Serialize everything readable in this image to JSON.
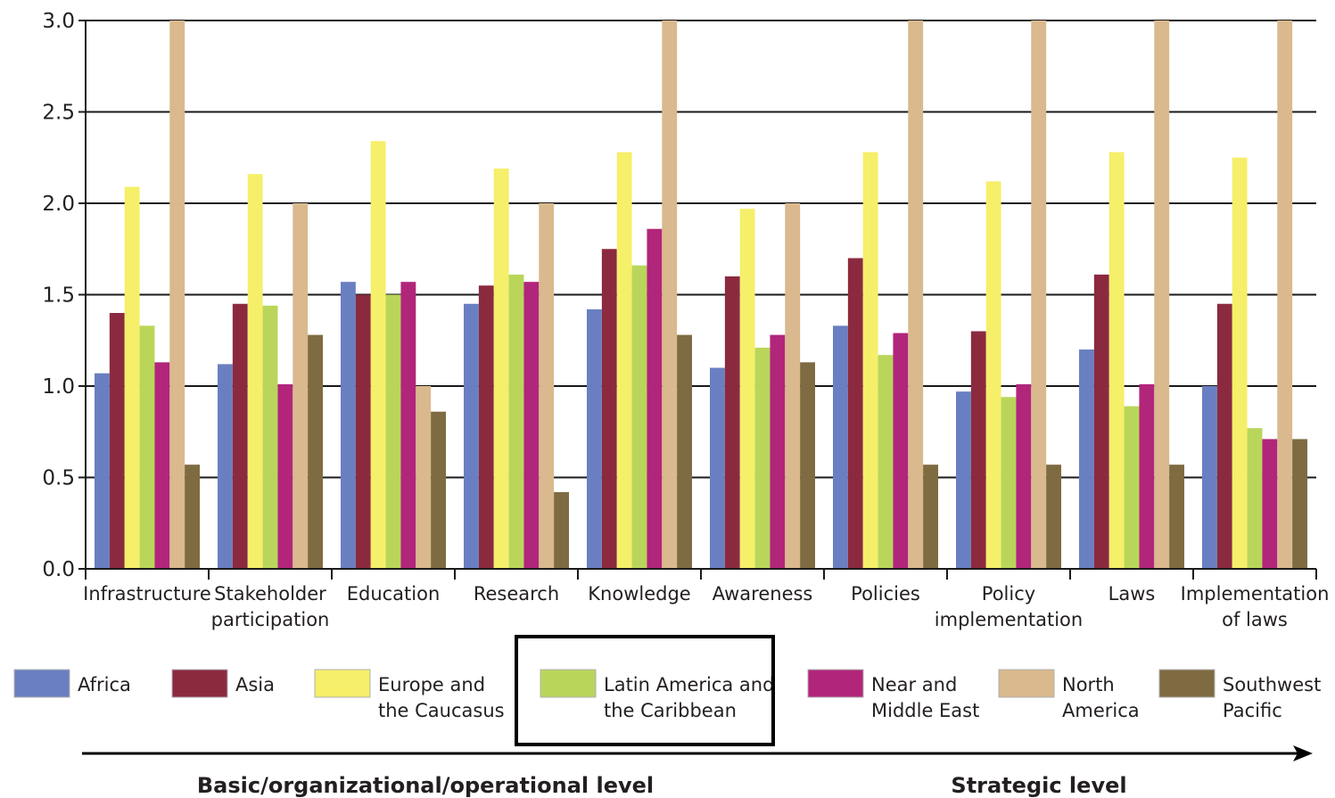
{
  "chart_data": {
    "type": "bar",
    "ylim": [
      0,
      3
    ],
    "yticks": [
      "0.0",
      "0.5",
      "1.0",
      "1.5",
      "2.0",
      "2.5",
      "3.0"
    ],
    "grid": true,
    "legend_position": "bottom",
    "categories": [
      [
        "Infrastructure"
      ],
      [
        "Stakeholder",
        "participation"
      ],
      [
        "Education"
      ],
      [
        "Research"
      ],
      [
        "Knowledge"
      ],
      [
        "Awareness"
      ],
      [
        "Policies"
      ],
      [
        "Policy",
        "implementation"
      ],
      [
        "Laws"
      ],
      [
        "Implementation",
        "of laws"
      ]
    ],
    "series": [
      {
        "name": [
          "Africa"
        ],
        "color": "#6a7fc1",
        "values": [
          1.07,
          1.12,
          1.57,
          1.45,
          1.42,
          1.1,
          1.33,
          0.97,
          1.2,
          1.0
        ]
      },
      {
        "name": [
          "Asia"
        ],
        "color": "#8b2a3f",
        "values": [
          1.4,
          1.45,
          1.5,
          1.55,
          1.75,
          1.6,
          1.7,
          1.3,
          1.61,
          1.45
        ]
      },
      {
        "name": [
          "Europe and",
          "the Caucasus"
        ],
        "color": "#f5ef6a",
        "values": [
          2.09,
          2.16,
          2.34,
          2.19,
          2.28,
          1.97,
          2.28,
          2.12,
          2.28,
          2.25
        ]
      },
      {
        "name": [
          "Latin America and",
          "the Caribbean"
        ],
        "color": "#b9d65a",
        "values": [
          1.33,
          1.44,
          1.5,
          1.61,
          1.66,
          1.21,
          1.17,
          0.94,
          0.89,
          0.77
        ]
      },
      {
        "name": [
          "Near and",
          "Middle East"
        ],
        "color": "#b1267a",
        "values": [
          1.13,
          1.01,
          1.57,
          1.57,
          1.86,
          1.28,
          1.29,
          1.01,
          1.01,
          0.71
        ]
      },
      {
        "name": [
          "North",
          "America"
        ],
        "color": "#d9b98d",
        "values": [
          3.0,
          2.0,
          1.0,
          2.0,
          3.0,
          2.0,
          3.0,
          3.0,
          3.0,
          3.0
        ]
      },
      {
        "name": [
          "Southwest",
          "Pacific"
        ],
        "color": "#7f6b41",
        "values": [
          0.57,
          1.28,
          0.86,
          0.42,
          1.28,
          1.13,
          0.57,
          0.57,
          0.57,
          0.71
        ]
      }
    ],
    "highlighted_legend_entry": "Latin America and the Caribbean",
    "arrow_labels": {
      "left": "Basic/organizational/operational level",
      "right": "Strategic level"
    }
  }
}
